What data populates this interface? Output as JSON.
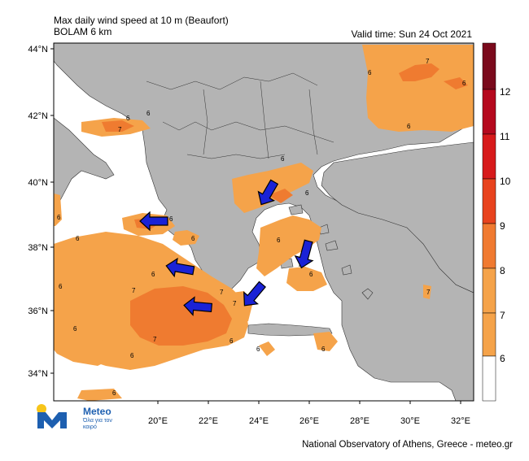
{
  "header": {
    "title_line1": "Max daily wind speed at 10 m (Beaufort)",
    "title_line2": "BOLAM 6 km",
    "valid_time": "Valid time: Sun 24 Oct 2021"
  },
  "footer": {
    "credit": "National Observatory of Athens, Greece - meteo.gr",
    "logo_name": "Meteo",
    "logo_tagline": "Όλα για τον καιρό"
  },
  "axes": {
    "lat_labels": [
      "44°N",
      "42°N",
      "40°N",
      "38°N",
      "36°N",
      "34°N"
    ],
    "lon_labels": [
      "20°E",
      "22°E",
      "24°E",
      "26°E",
      "28°E",
      "30°E",
      "32°E"
    ]
  },
  "legend": {
    "levels": [
      "12",
      "11",
      "10",
      "9",
      "8",
      "7",
      "6"
    ],
    "colors": [
      "#7a0a1c",
      "#b5091e",
      "#d71a1b",
      "#e8431e",
      "#f07a31",
      "#f5a34a",
      "#ffffff"
    ]
  },
  "contour_labels": [
    "6",
    "7",
    "6",
    "7",
    "6",
    "6",
    "6",
    "6",
    "6",
    "6",
    "6",
    "6",
    "7",
    "7",
    "7",
    "7",
    "6",
    "6",
    "6",
    "6",
    "6",
    "6",
    "6",
    "6",
    "7",
    "6",
    "6",
    "7",
    "6"
  ],
  "colors": {
    "land": "#b4b4b4",
    "sea": "#ffffff",
    "wind_6_7": "#f5a34a",
    "wind_7_8": "#ef7b30",
    "arrow": "#1a22d6"
  },
  "icons": [
    "wind-arrow-icon",
    "meteo-logo-icon"
  ]
}
